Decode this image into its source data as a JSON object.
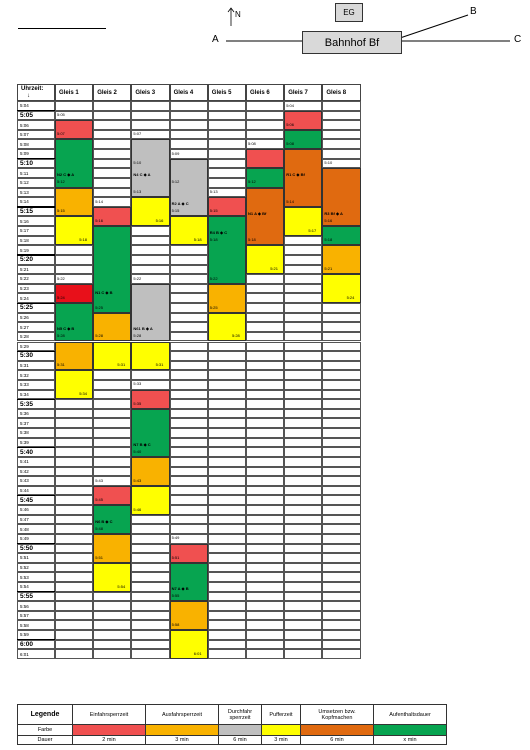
{
  "header": {
    "eg_label": "EG",
    "north_label": "N",
    "station_label": "Bahnhof Bf",
    "point_a": "A",
    "point_b": "B",
    "point_c": "C"
  },
  "table": {
    "time_header": "Uhrzeit:",
    "time_arrow": "↓",
    "tracks": [
      "Gleis 1",
      "Gleis 2",
      "Gleis 3",
      "Gleis 4",
      "Gleis 5",
      "Gleis 6",
      "Gleis 7",
      "Gleis 8"
    ],
    "start_minute": 304,
    "end_minute": 361
  },
  "colors": {
    "red": "#f05050",
    "darkred": "#e8101a",
    "orange": "#f9b200",
    "yellow": "#ffff00",
    "green": "#07a450",
    "grey": "#bfbfbf",
    "darkorange": "#e06a10",
    "white": "#ffffff"
  },
  "bars": [
    {
      "track": 0,
      "start": 306,
      "end": 308,
      "color": "red"
    },
    {
      "track": 0,
      "start": 308,
      "end": 313,
      "color": "green"
    },
    {
      "track": 0,
      "start": 313,
      "end": 316,
      "color": "orange"
    },
    {
      "track": 0,
      "start": 316,
      "end": 319,
      "color": "yellow"
    },
    {
      "track": 0,
      "start": 323,
      "end": 325,
      "color": "darkred"
    },
    {
      "track": 0,
      "start": 325,
      "end": 329,
      "color": "green"
    },
    {
      "track": 0,
      "start": 329,
      "end": 332,
      "color": "orange"
    },
    {
      "track": 0,
      "start": 332,
      "end": 335,
      "color": "yellow"
    },
    {
      "track": 1,
      "start": 315,
      "end": 317,
      "color": "red"
    },
    {
      "track": 1,
      "start": 317,
      "end": 326,
      "color": "green"
    },
    {
      "track": 1,
      "start": 326,
      "end": 329,
      "color": "orange"
    },
    {
      "track": 1,
      "start": 329,
      "end": 332,
      "color": "yellow"
    },
    {
      "track": 1,
      "start": 344,
      "end": 346,
      "color": "red"
    },
    {
      "track": 1,
      "start": 346,
      "end": 349,
      "color": "green"
    },
    {
      "track": 1,
      "start": 349,
      "end": 352,
      "color": "orange"
    },
    {
      "track": 1,
      "start": 352,
      "end": 355,
      "color": "yellow"
    },
    {
      "track": 2,
      "start": 308,
      "end": 314,
      "color": "grey"
    },
    {
      "track": 2,
      "start": 314,
      "end": 317,
      "color": "yellow"
    },
    {
      "track": 2,
      "start": 323,
      "end": 329,
      "color": "grey"
    },
    {
      "track": 2,
      "start": 329,
      "end": 332,
      "color": "yellow"
    },
    {
      "track": 2,
      "start": 334,
      "end": 336,
      "color": "red"
    },
    {
      "track": 2,
      "start": 336,
      "end": 341,
      "color": "green"
    },
    {
      "track": 2,
      "start": 341,
      "end": 344,
      "color": "orange"
    },
    {
      "track": 2,
      "start": 344,
      "end": 347,
      "color": "yellow"
    },
    {
      "track": 3,
      "start": 310,
      "end": 316,
      "color": "grey"
    },
    {
      "track": 3,
      "start": 316,
      "end": 319,
      "color": "yellow"
    },
    {
      "track": 3,
      "start": 350,
      "end": 352,
      "color": "red"
    },
    {
      "track": 3,
      "start": 352,
      "end": 356,
      "color": "green"
    },
    {
      "track": 3,
      "start": 356,
      "end": 359,
      "color": "orange"
    },
    {
      "track": 3,
      "start": 359,
      "end": 362,
      "color": "yellow"
    },
    {
      "track": 4,
      "start": 314,
      "end": 316,
      "color": "red"
    },
    {
      "track": 4,
      "start": 316,
      "end": 323,
      "color": "green"
    },
    {
      "track": 4,
      "start": 323,
      "end": 326,
      "color": "orange"
    },
    {
      "track": 4,
      "start": 326,
      "end": 329,
      "color": "yellow"
    },
    {
      "track": 5,
      "start": 309,
      "end": 311,
      "color": "red"
    },
    {
      "track": 5,
      "start": 311,
      "end": 313,
      "color": "green"
    },
    {
      "track": 5,
      "start": 313,
      "end": 319,
      "color": "darkorange"
    },
    {
      "track": 5,
      "start": 319,
      "end": 322,
      "color": "yellow"
    },
    {
      "track": 6,
      "start": 305,
      "end": 307,
      "color": "red"
    },
    {
      "track": 6,
      "start": 307,
      "end": 309,
      "color": "green"
    },
    {
      "track": 6,
      "start": 309,
      "end": 315,
      "color": "darkorange"
    },
    {
      "track": 6,
      "start": 315,
      "end": 318,
      "color": "yellow"
    },
    {
      "track": 7,
      "start": 311,
      "end": 317,
      "color": "darkorange"
    },
    {
      "track": 7,
      "start": 317,
      "end": 319,
      "color": "green"
    },
    {
      "track": 7,
      "start": 319,
      "end": 322,
      "color": "orange"
    },
    {
      "track": 7,
      "start": 322,
      "end": 325,
      "color": "yellow"
    }
  ],
  "events": [
    {
      "track": 0,
      "minute": 305,
      "label": "5:05"
    },
    {
      "track": 0,
      "minute": 307,
      "label": "5:07"
    },
    {
      "track": 0,
      "minute": 312,
      "label": "5:12"
    },
    {
      "track": 0,
      "minute": 315,
      "label": "5:15"
    },
    {
      "track": 0,
      "minute": 318,
      "label": "5:18",
      "align": "right"
    },
    {
      "track": 0,
      "minute": 322,
      "label": "5:22"
    },
    {
      "track": 0,
      "minute": 324,
      "label": "5:24"
    },
    {
      "track": 0,
      "minute": 328,
      "label": "5:28"
    },
    {
      "track": 0,
      "minute": 331,
      "label": "5:31"
    },
    {
      "track": 0,
      "minute": 334,
      "label": "5:34",
      "align": "right"
    },
    {
      "track": 1,
      "minute": 314,
      "label": "5:14"
    },
    {
      "track": 1,
      "minute": 316,
      "label": "5:16"
    },
    {
      "track": 1,
      "minute": 325,
      "label": "5:25"
    },
    {
      "track": 1,
      "minute": 328,
      "label": "5:28"
    },
    {
      "track": 1,
      "minute": 331,
      "label": "5:31",
      "align": "right"
    },
    {
      "track": 1,
      "minute": 343,
      "label": "5:43"
    },
    {
      "track": 1,
      "minute": 345,
      "label": "5:45"
    },
    {
      "track": 1,
      "minute": 348,
      "label": "5:48"
    },
    {
      "track": 1,
      "minute": 351,
      "label": "5:51"
    },
    {
      "track": 1,
      "minute": 354,
      "label": "5:54",
      "align": "right"
    },
    {
      "track": 2,
      "minute": 307,
      "label": "5:07"
    },
    {
      "track": 2,
      "minute": 310,
      "label": "5:10"
    },
    {
      "track": 2,
      "minute": 313,
      "label": "5:13"
    },
    {
      "track": 2,
      "minute": 316,
      "label": "5:16",
      "align": "right"
    },
    {
      "track": 2,
      "minute": 322,
      "label": "5:22"
    },
    {
      "track": 2,
      "minute": 328,
      "label": "5:28"
    },
    {
      "track": 2,
      "minute": 331,
      "label": "5:31",
      "align": "right"
    },
    {
      "track": 2,
      "minute": 333,
      "label": "5:33"
    },
    {
      "track": 2,
      "minute": 335,
      "label": "5:35"
    },
    {
      "track": 2,
      "minute": 340,
      "label": "5:40"
    },
    {
      "track": 2,
      "minute": 343,
      "label": "5:43"
    },
    {
      "track": 2,
      "minute": 346,
      "label": "5:46"
    },
    {
      "track": 3,
      "minute": 309,
      "label": "5:09"
    },
    {
      "track": 3,
      "minute": 312,
      "label": "5:12"
    },
    {
      "track": 3,
      "minute": 315,
      "label": "5:15"
    },
    {
      "track": 3,
      "minute": 318,
      "label": "5:18",
      "align": "right"
    },
    {
      "track": 3,
      "minute": 349,
      "label": "5:49"
    },
    {
      "track": 3,
      "minute": 351,
      "label": "5:51"
    },
    {
      "track": 3,
      "minute": 355,
      "label": "5:55"
    },
    {
      "track": 3,
      "minute": 358,
      "label": "5:58"
    },
    {
      "track": 3,
      "minute": 361,
      "label": "6:01",
      "align": "right"
    },
    {
      "track": 4,
      "minute": 313,
      "label": "5:13"
    },
    {
      "track": 4,
      "minute": 315,
      "label": "5:15"
    },
    {
      "track": 4,
      "minute": 318,
      "label": "5:18"
    },
    {
      "track": 4,
      "minute": 322,
      "label": "5:22"
    },
    {
      "track": 4,
      "minute": 325,
      "label": "5:25"
    },
    {
      "track": 4,
      "minute": 328,
      "label": "5:28",
      "align": "right"
    },
    {
      "track": 5,
      "minute": 308,
      "label": "5:08"
    },
    {
      "track": 5,
      "minute": 312,
      "label": "5:12"
    },
    {
      "track": 5,
      "minute": 318,
      "label": "5:18"
    },
    {
      "track": 5,
      "minute": 321,
      "label": "5:21",
      "align": "right"
    },
    {
      "track": 6,
      "minute": 304,
      "label": "5:04"
    },
    {
      "track": 6,
      "minute": 306,
      "label": "5:06"
    },
    {
      "track": 6,
      "minute": 308,
      "label": "5:08"
    },
    {
      "track": 6,
      "minute": 314,
      "label": "5:14"
    },
    {
      "track": 6,
      "minute": 317,
      "label": "5:17",
      "align": "right"
    },
    {
      "track": 7,
      "minute": 310,
      "label": "5:10"
    },
    {
      "track": 7,
      "minute": 316,
      "label": "5:16"
    },
    {
      "track": 7,
      "minute": 318,
      "label": "5:18"
    },
    {
      "track": 7,
      "minute": 321,
      "label": "5:21"
    },
    {
      "track": 7,
      "minute": 324,
      "label": "5:24",
      "align": "right"
    }
  ],
  "trains": [
    {
      "track": 0,
      "minute": 311.4,
      "label": "N2  C ◆ A"
    },
    {
      "track": 0,
      "minute": 327.4,
      "label": "N5  C ◆ B"
    },
    {
      "track": 1,
      "minute": 323.6,
      "label": "N1  C ◆ B"
    },
    {
      "track": 1,
      "minute": 347.4,
      "label": "N6  B ◆  C"
    },
    {
      "track": 2,
      "minute": 311.4,
      "label": "N4  C ◆ A"
    },
    {
      "track": 2,
      "minute": 327.4,
      "label": "N61  B ◆ A"
    },
    {
      "track": 2,
      "minute": 339.4,
      "label": "N7  B ◆  C"
    },
    {
      "track": 3,
      "minute": 314.4,
      "label": "R2  A ◆ C"
    },
    {
      "track": 3,
      "minute": 354.4,
      "label": "N7  A  ◆ B"
    },
    {
      "track": 4,
      "minute": 317.4,
      "label": "R4  B ◆  C"
    },
    {
      "track": 5,
      "minute": 315.4,
      "label": "N1  A ◆ Bf"
    },
    {
      "track": 6,
      "minute": 311.4,
      "label": "R1  C ◆  Bf"
    },
    {
      "track": 7,
      "minute": 315.4,
      "label": "R3  Bf ◆  A"
    }
  ],
  "legend": {
    "title": "Legende",
    "row_color_label": "Farbe",
    "row_duration_label": "Dauer",
    "items": [
      {
        "name": "Einfahrsperrzeit",
        "color": "red",
        "duration": "2 min"
      },
      {
        "name": "Ausfahrsperrzeit",
        "color": "orange",
        "duration": "3 min"
      },
      {
        "name": "Durchfahr sperrzeit",
        "color": "grey",
        "duration": "6 min"
      },
      {
        "name": "Pufferzeit",
        "color": "yellow",
        "duration": "3 min"
      },
      {
        "name": "Umsetzen bzw. Kopfmachen",
        "color": "darkorange",
        "duration": "6 min"
      },
      {
        "name": "Aufenthaltsdauer",
        "color": "green",
        "duration": "x min"
      }
    ]
  }
}
